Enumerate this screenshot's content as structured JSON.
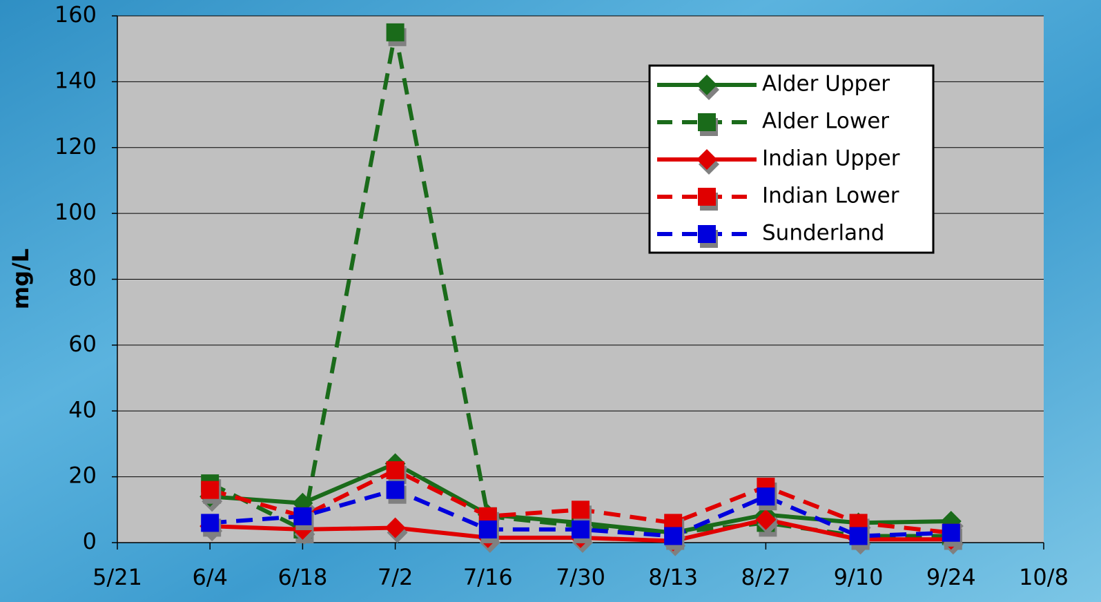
{
  "chart_data": {
    "type": "line",
    "y_label": "mg/L",
    "categories": [
      "5/21",
      "6/4",
      "6/18",
      "7/2",
      "7/16",
      "7/30",
      "8/13",
      "8/27",
      "9/10",
      "9/24",
      "10/8"
    ],
    "ylim": [
      0,
      160
    ],
    "yticks": [
      0,
      20,
      40,
      60,
      80,
      100,
      120,
      140,
      160
    ],
    "grid": true,
    "legend": "upper-right",
    "series": [
      {
        "name": "Alder Upper",
        "color": "#1a6b1a",
        "dash": false,
        "marker": "diamond",
        "values": [
          null,
          14,
          12,
          24,
          8.5,
          6,
          3,
          8.5,
          6,
          6.5,
          null
        ]
      },
      {
        "name": "Alder Lower",
        "color": "#1a6b1a",
        "dash": true,
        "marker": "square",
        "values": [
          null,
          18,
          4,
          155,
          8,
          5,
          3,
          6,
          2,
          2,
          null
        ]
      },
      {
        "name": "Indian Upper",
        "color": "#e00000",
        "dash": false,
        "marker": "diamond",
        "values": [
          null,
          5,
          4,
          4.5,
          1.5,
          1.5,
          0.5,
          7,
          1,
          1,
          null
        ]
      },
      {
        "name": "Indian Lower",
        "color": "#e00000",
        "dash": true,
        "marker": "square",
        "values": [
          null,
          16,
          8,
          22,
          8,
          10,
          6,
          17,
          6,
          3,
          null
        ]
      },
      {
        "name": "Sunderland",
        "color": "#0000dd",
        "dash": true,
        "marker": "square",
        "values": [
          null,
          6,
          8,
          16,
          4,
          4,
          2,
          14,
          2,
          3,
          null
        ]
      }
    ]
  }
}
